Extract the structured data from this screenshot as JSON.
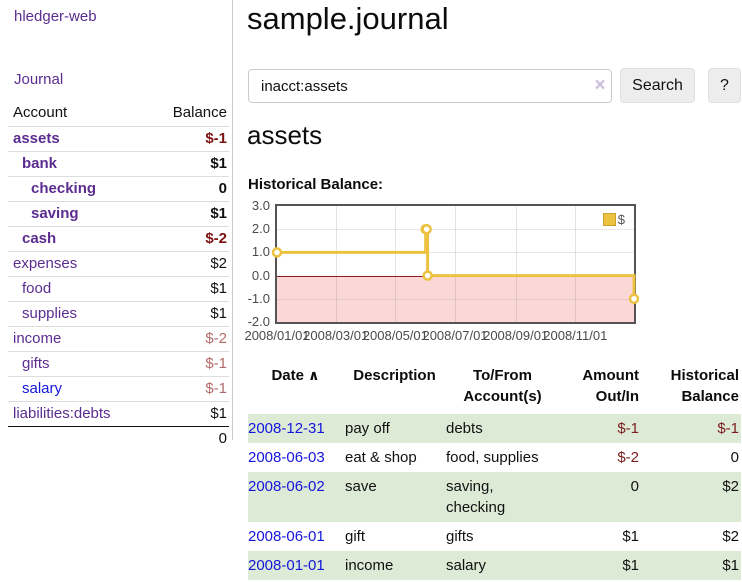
{
  "colors": {
    "link_purple": "#5b2d90",
    "link_blue": "#1515dd",
    "negative_strong": "#7d1212",
    "negative_muted": "#b36b6b",
    "negative_table": "#7d2020",
    "row_highlight_green": "#dcead6",
    "chart_line_gold": "#edc240",
    "chart_negative_region": "#fbd7d7",
    "chart_zero_line": "#8b1f1f"
  },
  "sidebar": {
    "app_link": "hledger-web",
    "journal_link": "Journal",
    "table": {
      "headers": {
        "account": "Account",
        "balance": "Balance"
      },
      "rows": [
        {
          "name": "assets",
          "balance": "$-1",
          "indent": 1,
          "bold": true,
          "link_color": "purple",
          "balance_style": "neg-strong"
        },
        {
          "name": "bank",
          "balance": "$1",
          "indent": 2,
          "bold": true,
          "link_color": "purple",
          "balance_style": "normal"
        },
        {
          "name": "checking",
          "balance": "0",
          "indent": 3,
          "bold": true,
          "link_color": "purple",
          "balance_style": "normal"
        },
        {
          "name": "saving",
          "balance": "$1",
          "indent": 3,
          "bold": true,
          "link_color": "purple",
          "balance_style": "normal"
        },
        {
          "name": "cash",
          "balance": "$-2",
          "indent": 2,
          "bold": true,
          "link_color": "purple",
          "balance_style": "neg-strong"
        },
        {
          "name": "expenses",
          "balance": "$2",
          "indent": 1,
          "bold": false,
          "link_color": "purple",
          "balance_style": "normal"
        },
        {
          "name": "food",
          "balance": "$1",
          "indent": 2,
          "bold": false,
          "link_color": "purple",
          "balance_style": "normal"
        },
        {
          "name": "supplies",
          "balance": "$1",
          "indent": 2,
          "bold": false,
          "link_color": "purple",
          "balance_style": "normal"
        },
        {
          "name": "income",
          "balance": "$-2",
          "indent": 1,
          "bold": false,
          "link_color": "purple",
          "balance_style": "neg-muted"
        },
        {
          "name": "gifts",
          "balance": "$-1",
          "indent": 2,
          "bold": false,
          "link_color": "purple",
          "balance_style": "neg-muted"
        },
        {
          "name": "salary",
          "balance": "$-1",
          "indent": 2,
          "bold": false,
          "link_color": "blue",
          "balance_style": "neg-muted"
        },
        {
          "name": "liabilities:debts",
          "balance": "$1",
          "indent": 1,
          "bold": false,
          "link_color": "purple",
          "balance_style": "normal"
        }
      ],
      "total": "0"
    }
  },
  "main": {
    "title": "sample.journal",
    "search": {
      "value": "inacct:assets",
      "clear_icon": "×",
      "button_label": "Search",
      "help_label": "?"
    },
    "account_heading": "assets",
    "chart_label": "Historical Balance:"
  },
  "chart_data": {
    "type": "line",
    "step": true,
    "title": "Historical Balance",
    "series": [
      {
        "name": "$",
        "color": "#edc240",
        "points": [
          [
            "2008-01-01",
            1
          ],
          [
            "2008-06-01",
            2
          ],
          [
            "2008-06-02",
            2
          ],
          [
            "2008-06-03",
            0
          ],
          [
            "2008-12-31",
            -1
          ]
        ]
      }
    ],
    "x_range": [
      "2008-01-01",
      "2008-12-31"
    ],
    "x_ticks": [
      "2008/01/01",
      "2008/03/01",
      "2008/05/01",
      "2008/07/01",
      "2008/09/01",
      "2008/11/01"
    ],
    "y_ticks": [
      "3.0",
      "2.0",
      "1.0",
      "0.0",
      "-1.0",
      "-2.0"
    ],
    "ylim": [
      -2,
      3
    ],
    "grid": true,
    "legend_position": "top-right",
    "negative_region": true
  },
  "register": {
    "sort_icon": "∧",
    "headers": [
      {
        "label": "Date",
        "align": "left",
        "sortable": true
      },
      {
        "label": "Description",
        "align": "left",
        "sortable": false
      },
      {
        "label": "To/From\nAccount(s)",
        "align": "left",
        "sortable": false
      },
      {
        "label": "Amount\nOut/In",
        "align": "right",
        "sortable": false
      },
      {
        "label": "Historical\nBalance",
        "align": "right",
        "sortable": false
      }
    ],
    "rows": [
      {
        "date": "2008-12-31",
        "description": "pay off",
        "accounts": "debts",
        "amount": "$-1",
        "amount_neg": true,
        "balance": "$-1",
        "balance_neg": true,
        "highlight": true
      },
      {
        "date": "2008-06-03",
        "description": "eat & shop",
        "accounts": "food, supplies",
        "amount": "$-2",
        "amount_neg": true,
        "balance": "0",
        "balance_neg": false,
        "highlight": false
      },
      {
        "date": "2008-06-02",
        "description": "save",
        "accounts": "saving,\nchecking",
        "amount": "0",
        "amount_neg": false,
        "balance": "$2",
        "balance_neg": false,
        "highlight": true
      },
      {
        "date": "2008-06-01",
        "description": "gift",
        "accounts": "gifts",
        "amount": "$1",
        "amount_neg": false,
        "balance": "$2",
        "balance_neg": false,
        "highlight": false
      },
      {
        "date": "2008-01-01",
        "description": "income",
        "accounts": "salary",
        "amount": "$1",
        "amount_neg": false,
        "balance": "$1",
        "balance_neg": false,
        "highlight": true
      }
    ]
  }
}
